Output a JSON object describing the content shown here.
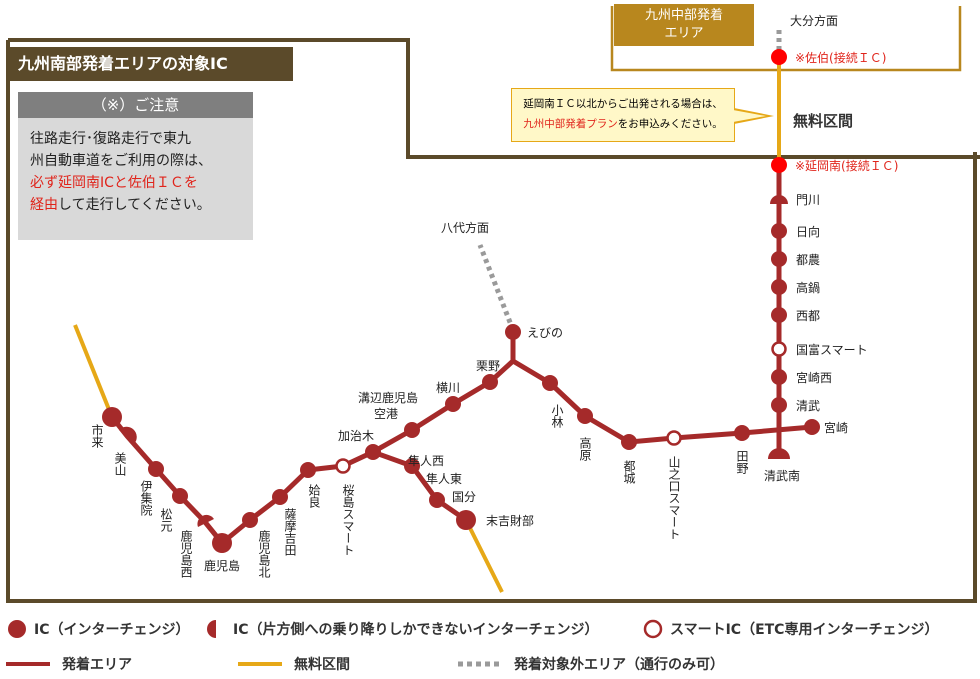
{
  "title": "九州南部発着エリアの対象IC",
  "notice": {
    "heading": "（※）ご注意",
    "line1": "往路走行･復路走行で東九",
    "line2": "州自動車道をご利用の際は、",
    "line3_red": "必ず延岡南ICと佐伯ＩＣを",
    "line4_red": "経由",
    "line4_rest": "して走行してください。"
  },
  "central_area": {
    "line1": "九州中部発着",
    "line2": "エリア"
  },
  "callout": {
    "line1": "延岡南ＩＣ以北からご出発される場合は、",
    "line2_red": "九州中部発着プラン",
    "line2_rest": "をお申込みください。"
  },
  "free_section_label": "無料区間",
  "direction_oita": "大分方面",
  "direction_yatsushiro": "八代方面",
  "ic_labels": {
    "saiki": "※佐伯(接続ＩＣ)",
    "nobeokaminami": "※延岡南(接続ＩＣ)",
    "kadogawa": "門川",
    "hyuga": "日向",
    "tsuno": "都農",
    "takanabe": "高鍋",
    "saito": "西都",
    "kunitomi": "国富スマート",
    "miyazakinishi": "宮崎西",
    "kiyotake": "清武",
    "miyazaki": "宮崎",
    "kiyotakeminami": "清武南",
    "tano": "田野",
    "yamanokuchi": "山之口スマート",
    "miyakonojo": "都城",
    "takaharu": "高原",
    "kobayashi": "小林",
    "ebino": "えびの",
    "kurino": "栗野",
    "yokogawa": "横川",
    "mizobe": "溝辺鹿児島\n空港",
    "kajiki": "加治木",
    "hayatonishi": "隼人西",
    "hayatohigashi": "隼人東",
    "kokubu": "国分",
    "sueyoshi": "末吉財部",
    "sakurajima": "桜島スマート",
    "aira": "姶良",
    "satsumayoshida": "薩摩吉田",
    "kagoshimakita": "鹿児島北",
    "kagoshima": "鹿児島",
    "kagoshimanishi": "鹿児島西",
    "matsumoto": "松元",
    "ijuin": "伊集院",
    "miyama": "美山",
    "ichiki": "市来"
  },
  "legend": {
    "ic": "IC（インターチェンジ）",
    "half_ic": "IC（片方側への乗り降りしかできないインターチェンジ）",
    "smart_ic": "スマートIC（ETC専用インターチェンジ）",
    "area_line": "発着エリア",
    "free_line": "無料区間",
    "outside_line": "発着対象外エリア（通行のみ可）"
  },
  "colors": {
    "route": "#a52a2a",
    "free": "#e6a817",
    "outside": "#9a9a9a",
    "frame": "#5b4a2a",
    "red_text": "#e0241b"
  }
}
